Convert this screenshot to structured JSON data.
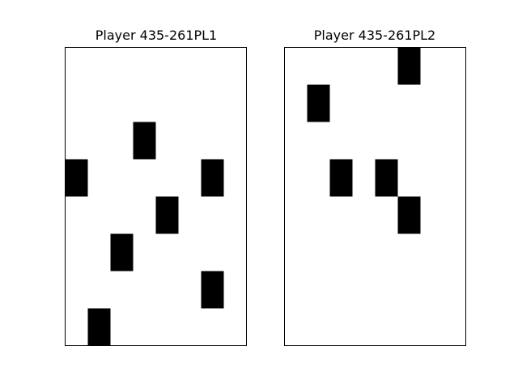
{
  "chart_data": [
    {
      "type": "heatmap",
      "title": "Player 435-261PL1",
      "columns": 8,
      "rows": 8,
      "cell_color": "#000000",
      "background_color": "#ffffff",
      "cells": [
        {
          "col": 3,
          "row": 2
        },
        {
          "col": 0,
          "row": 3
        },
        {
          "col": 6,
          "row": 3
        },
        {
          "col": 4,
          "row": 4
        },
        {
          "col": 2,
          "row": 5
        },
        {
          "col": 6,
          "row": 6
        },
        {
          "col": 1,
          "row": 7
        }
      ]
    },
    {
      "type": "heatmap",
      "title": "Player 435-261PL2",
      "columns": 8,
      "rows": 8,
      "cell_color": "#000000",
      "background_color": "#ffffff",
      "cells": [
        {
          "col": 5,
          "row": 0
        },
        {
          "col": 1,
          "row": 1
        },
        {
          "col": 2,
          "row": 3
        },
        {
          "col": 4,
          "row": 3
        },
        {
          "col": 5,
          "row": 4
        }
      ]
    }
  ]
}
